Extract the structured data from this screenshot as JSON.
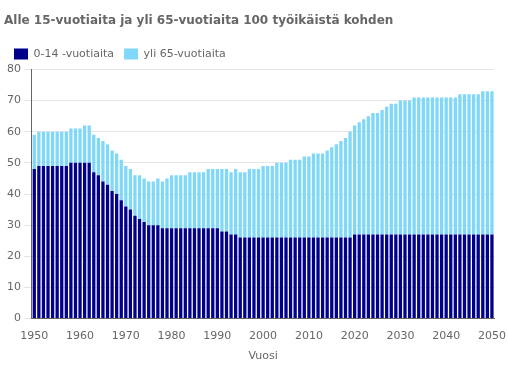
{
  "chart_data": {
    "type": "bar",
    "title": "Alle 15-vuotiaita ja yli 65-vuotiaita 100 työikäistä kohden",
    "xlabel": "Vuosi",
    "x": [
      1950,
      1951,
      1952,
      1953,
      1954,
      1955,
      1956,
      1957,
      1958,
      1959,
      1960,
      1961,
      1962,
      1963,
      1964,
      1965,
      1966,
      1967,
      1968,
      1969,
      1970,
      1971,
      1972,
      1973,
      1974,
      1975,
      1976,
      1977,
      1978,
      1979,
      1980,
      1981,
      1982,
      1983,
      1984,
      1985,
      1986,
      1987,
      1988,
      1989,
      1990,
      1991,
      1992,
      1993,
      1994,
      1995,
      1996,
      1997,
      1998,
      1999,
      2000,
      2001,
      2002,
      2003,
      2004,
      2005,
      2006,
      2007,
      2008,
      2009,
      2010,
      2011,
      2012,
      2013,
      2014,
      2015,
      2016,
      2017,
      2018,
      2019,
      2020,
      2021,
      2022,
      2023,
      2024,
      2025,
      2026,
      2027,
      2028,
      2029,
      2030,
      2031,
      2032,
      2033,
      2034,
      2035,
      2036,
      2037,
      2038,
      2039,
      2040,
      2041,
      2042,
      2043,
      2044,
      2045,
      2046,
      2047,
      2048,
      2049,
      2050
    ],
    "series": [
      {
        "name": "0-14 -vuotiaita",
        "color": "#00008B",
        "values": [
          48,
          49,
          49,
          49,
          49,
          49,
          49,
          49,
          50,
          50,
          50,
          50,
          50,
          47,
          46,
          44,
          43,
          41,
          40,
          38,
          36,
          35,
          33,
          32,
          31,
          30,
          30,
          30,
          29,
          29,
          29,
          29,
          29,
          29,
          29,
          29,
          29,
          29,
          29,
          29,
          29,
          28,
          28,
          27,
          27,
          26,
          26,
          26,
          26,
          26,
          26,
          26,
          26,
          26,
          26,
          26,
          26,
          26,
          26,
          26,
          26,
          26,
          26,
          26,
          26,
          26,
          26,
          26,
          26,
          26,
          27,
          27,
          27,
          27,
          27,
          27,
          27,
          27,
          27,
          27,
          27,
          27,
          27,
          27,
          27,
          27,
          27,
          27,
          27,
          27,
          27,
          27,
          27,
          27,
          27,
          27,
          27,
          27,
          27,
          27,
          27
        ]
      },
      {
        "name": "yli 65-vuotiaita",
        "color": "#7FD8F8",
        "values": [
          11,
          11,
          11,
          11,
          11,
          11,
          11,
          11,
          11,
          11,
          11,
          12,
          12,
          12,
          12,
          13,
          13,
          13,
          13,
          13,
          13,
          13,
          13,
          14,
          14,
          14,
          14,
          15,
          15,
          16,
          17,
          17,
          17,
          17,
          18,
          18,
          18,
          18,
          19,
          19,
          19,
          20,
          20,
          20,
          21,
          21,
          21,
          22,
          22,
          22,
          23,
          23,
          23,
          24,
          24,
          24,
          25,
          25,
          25,
          26,
          26,
          27,
          27,
          27,
          28,
          29,
          30,
          31,
          32,
          34,
          35,
          36,
          37,
          38,
          39,
          39,
          40,
          41,
          42,
          42,
          43,
          43,
          43,
          44,
          44,
          44,
          44,
          44,
          44,
          44,
          44,
          44,
          44,
          45,
          45,
          45,
          45,
          45,
          46,
          46,
          46
        ]
      }
    ],
    "stacked": true,
    "xlim": [
      1949.5,
      2050.5
    ],
    "xticks": [
      1950,
      1960,
      1970,
      1980,
      1990,
      2000,
      2010,
      2020,
      2030,
      2040,
      2050
    ],
    "ylim": [
      0,
      80
    ],
    "yticks": [
      0,
      10,
      20,
      30,
      40,
      50,
      60,
      70,
      80
    ],
    "grid": "y",
    "legend": "upper left"
  }
}
